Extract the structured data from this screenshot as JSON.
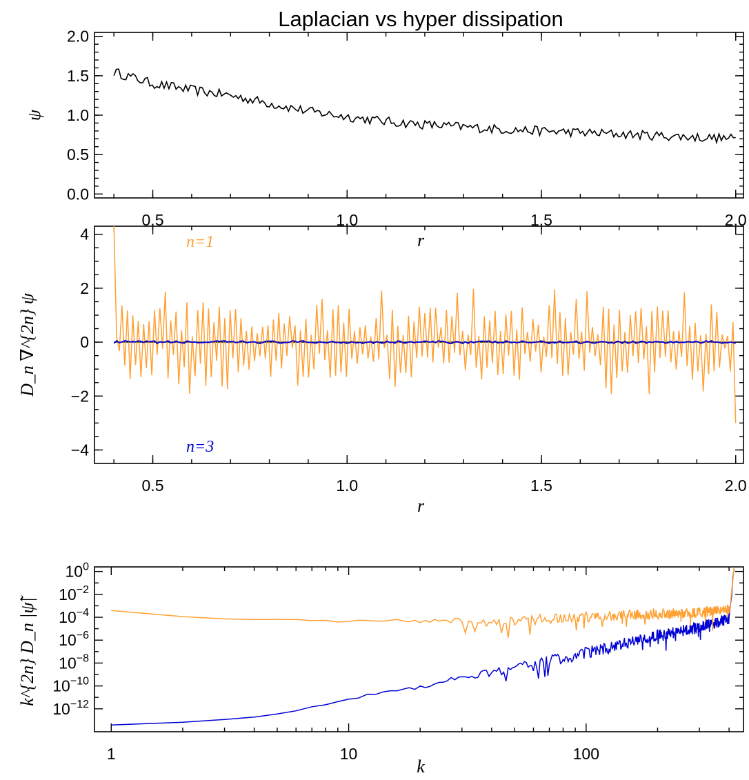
{
  "figure_title": "Laplacian vs hyper dissipation",
  "colors": {
    "black": "#000000",
    "orange": "#ffa033",
    "blue": "#0000d4"
  },
  "chart_data": [
    {
      "type": "line",
      "title": "Laplacian vs hyper dissipation",
      "xlabel": "r",
      "ylabel": "ψ",
      "xlim": [
        0.4,
        2.0
      ],
      "ylim": [
        -0.05,
        2.05
      ],
      "xticks": [
        "0.5",
        "1.0",
        "1.5",
        "2.0"
      ],
      "yticks": [
        "0.0",
        "0.5",
        "1.0",
        "1.5",
        "2.0"
      ],
      "series": [
        {
          "color": "#000000",
          "x": [
            0.4,
            0.5,
            0.6,
            0.7,
            0.8,
            0.9,
            1.0,
            1.1,
            1.2,
            1.3,
            1.4,
            1.5,
            1.6,
            1.7,
            1.8,
            1.9,
            2.0
          ],
          "y": [
            1.55,
            1.4,
            1.32,
            1.25,
            1.15,
            1.05,
            0.98,
            0.92,
            0.88,
            0.85,
            0.82,
            0.8,
            0.78,
            0.76,
            0.74,
            0.72,
            0.7
          ],
          "noise": 0.06
        }
      ]
    },
    {
      "type": "line",
      "xlabel": "r",
      "ylabel": "D_n ∇^{2n} ψ",
      "xlim": [
        0.4,
        2.0
      ],
      "ylim": [
        -4.5,
        4.3
      ],
      "xticks": [
        "0.5",
        "1.0",
        "1.5",
        "2.0"
      ],
      "yticks": [
        "−4",
        "−2",
        "0",
        "2",
        "4"
      ],
      "reference_line_y": 0,
      "series": [
        {
          "name": "n=1",
          "color": "#ffa033",
          "x_start": 0.4,
          "x_end": 2.0,
          "start_value": 4.3,
          "end_value": -3.0,
          "amplitude": 1.2,
          "spikes": 2.0
        },
        {
          "name": "n=3",
          "color": "#0000d4",
          "x_start": 0.4,
          "x_end": 2.0,
          "value": 0.0,
          "amplitude": 0.05
        }
      ]
    },
    {
      "type": "line",
      "xlabel": "k",
      "ylabel": "k^{2n} D_n |ψ̃|",
      "xscale": "log",
      "yscale": "log",
      "xlim": [
        0.85,
        460
      ],
      "ylim_exponent": [
        -14,
        0.4
      ],
      "xticks": [
        "1",
        "10",
        "100"
      ],
      "ytick_exponents": [
        0,
        -2,
        -4,
        -6,
        -8,
        -10,
        -12
      ],
      "series": [
        {
          "name": "n=1",
          "color": "#ffa033",
          "k": [
            1,
            2.5,
            4,
            6,
            8,
            10,
            12,
            15,
            20,
            30,
            50,
            80,
            120,
            200,
            300,
            400,
            420
          ],
          "log10_value": [
            -3.4,
            -4.1,
            -4.2,
            -4.2,
            -4.3,
            -4.4,
            -4.25,
            -4.3,
            -4.35,
            -4.25,
            -4.3,
            -4.1,
            -3.9,
            -3.7,
            -3.6,
            -3.3,
            0.2
          ]
        },
        {
          "name": "n=3",
          "color": "#0000d4",
          "k": [
            1,
            2.5,
            4,
            6,
            8,
            10,
            12,
            15,
            20,
            30,
            50,
            80,
            120,
            200,
            300,
            400,
            420
          ],
          "log10_value": [
            -13.4,
            -13.1,
            -12.7,
            -12.2,
            -11.6,
            -11.2,
            -10.8,
            -10.4,
            -10.1,
            -9.2,
            -8.5,
            -7.6,
            -6.7,
            -5.6,
            -4.9,
            -4.1,
            0.2
          ]
        }
      ]
    }
  ]
}
